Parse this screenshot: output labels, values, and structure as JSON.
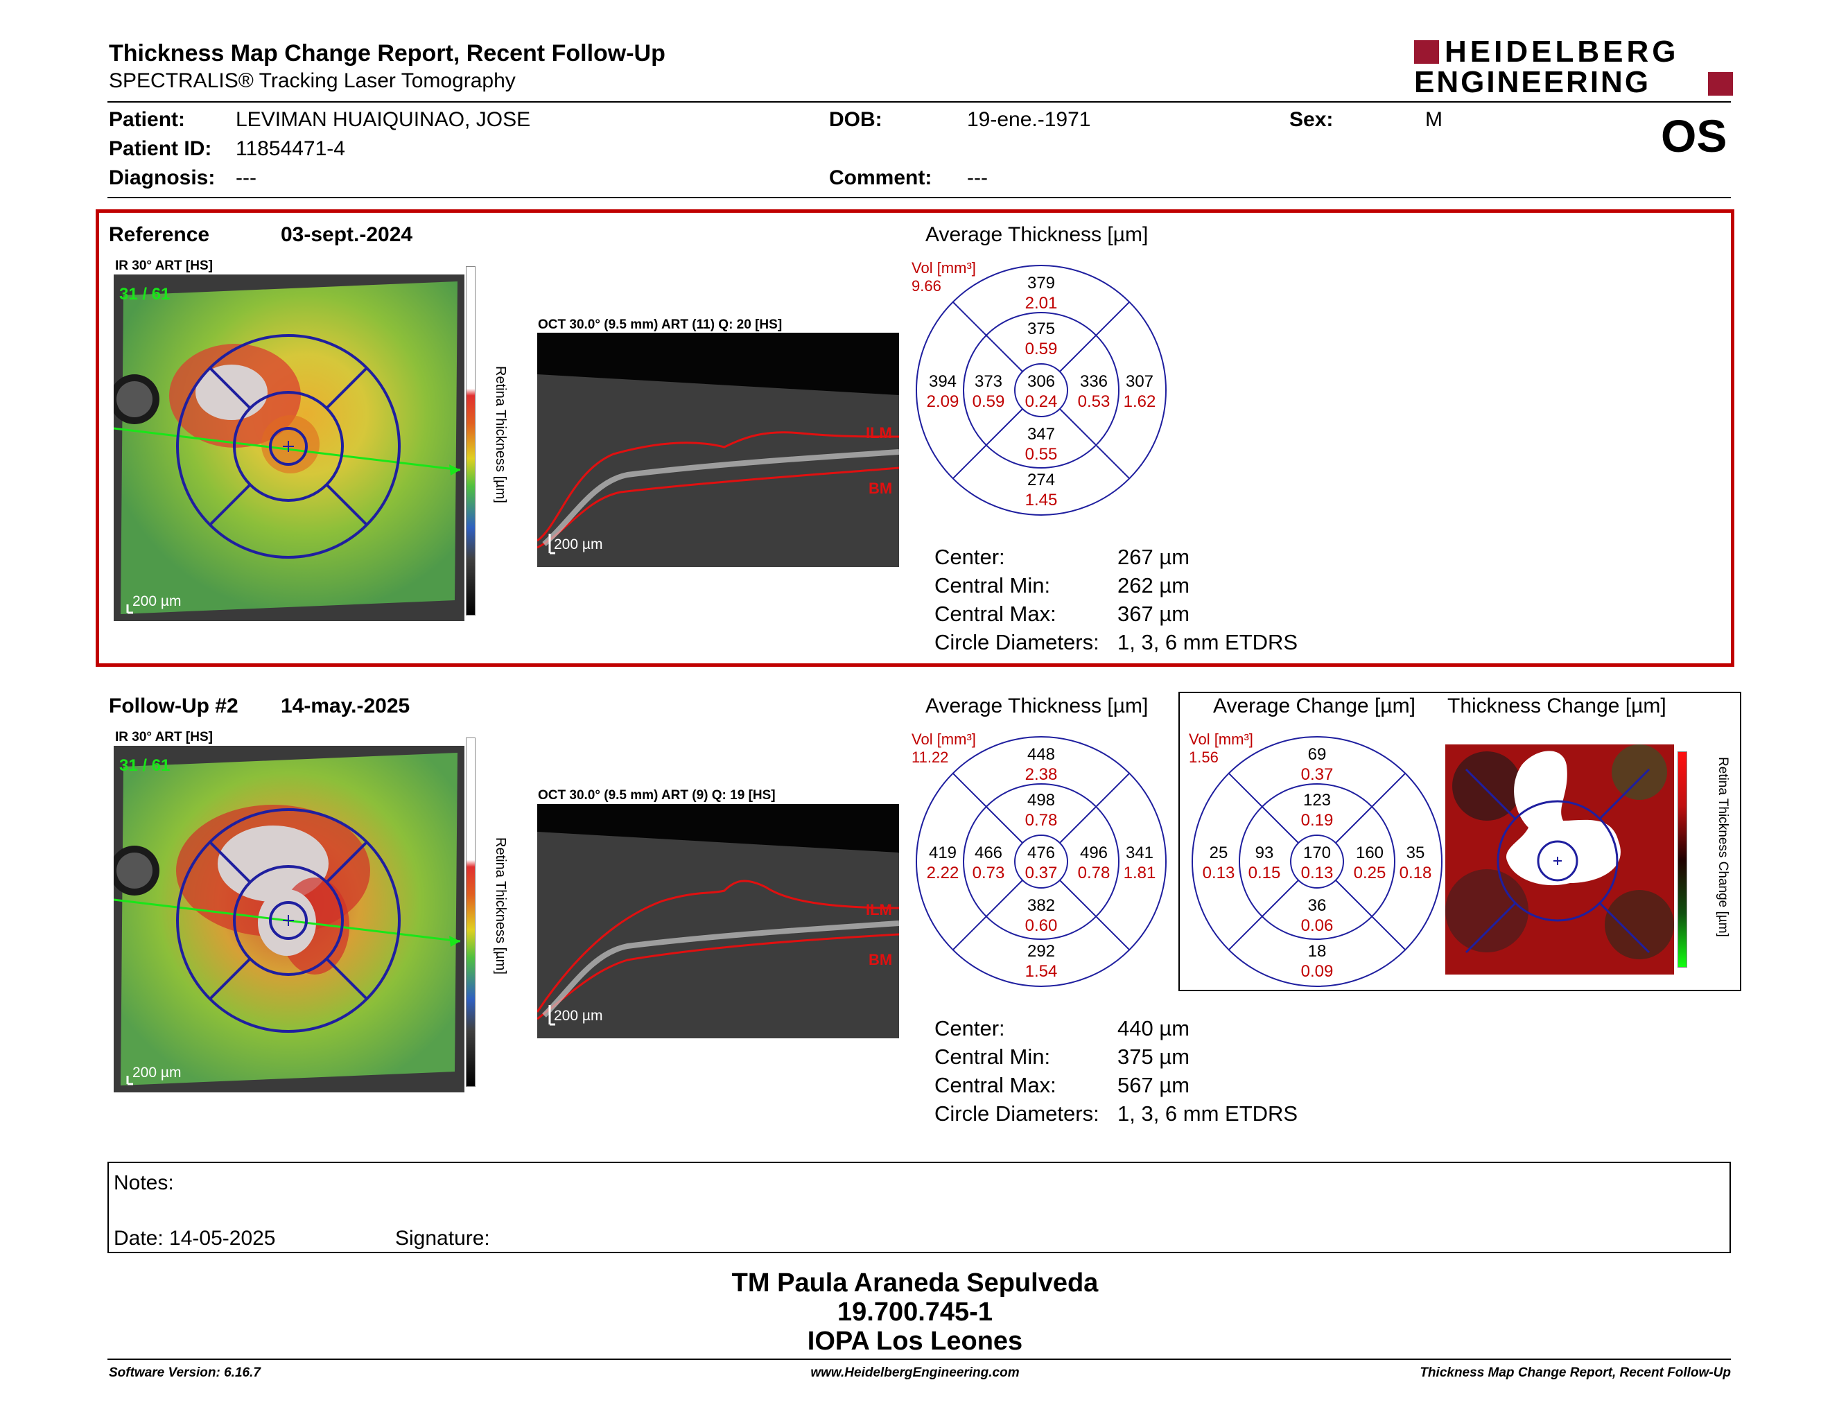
{
  "header": {
    "title": "Thickness Map Change Report, Recent Follow-Up",
    "subtitle": "SPECTRALIS® Tracking Laser Tomography",
    "logo_line1": "HEIDELBERG",
    "logo_line2": "ENGINEERING",
    "eye": "OS"
  },
  "patient": {
    "patient_label": "Patient:",
    "patient_value": "LEVIMAN HUAIQUINAO, JOSE",
    "id_label": "Patient ID:",
    "id_value": "11854471-4",
    "diagnosis_label": "Diagnosis:",
    "diagnosis_value": "---",
    "dob_label": "DOB:",
    "dob_value": "19-ene.-1971",
    "comment_label": "Comment:",
    "comment_value": "---",
    "sex_label": "Sex:",
    "sex_value": "M"
  },
  "colors": {
    "accent_red": "#c00000",
    "grid_blue": "#1f1f9f"
  },
  "reference": {
    "label": "Reference",
    "date": "03-sept.-2024",
    "ir_label": "IR 30° ART [HS]",
    "ir_counter": "31 / 61",
    "scale": "200 µm",
    "oct_label": "OCT 30.0° (9.5 mm) ART (11) Q: 20 [HS]",
    "oct_scale": "200 µm",
    "ilm": "ILM",
    "bm": "BM",
    "colorbar_title": "Retina Thickness [µm]",
    "colorbar_ticks": [
      "800",
      "700",
      "600",
      "500",
      "400",
      "300",
      "200",
      "100",
      "0"
    ],
    "avg_title": "Average Thickness [µm]",
    "vol_label": "Vol [mm³]",
    "vol_value": "9.66",
    "grid": {
      "center": [
        "306",
        "0.24"
      ],
      "inner_top": [
        "375",
        "0.59"
      ],
      "inner_right": [
        "336",
        "0.53"
      ],
      "inner_bottom": [
        "347",
        "0.55"
      ],
      "inner_left": [
        "373",
        "0.59"
      ],
      "outer_top": [
        "379",
        "2.01"
      ],
      "outer_right": [
        "307",
        "1.62"
      ],
      "outer_bottom": [
        "274",
        "1.45"
      ],
      "outer_left": [
        "394",
        "2.09"
      ]
    },
    "stats": {
      "center_label": "Center:",
      "center_value": "267 µm",
      "min_label": "Central Min:",
      "min_value": "262 µm",
      "max_label": "Central Max:",
      "max_value": "367 µm",
      "circle_label": "Circle Diameters:",
      "circle_value": "1, 3, 6 mm ETDRS"
    }
  },
  "followup": {
    "label": "Follow-Up #2",
    "date": "14-may.-2025",
    "ir_label": "IR 30° ART [HS]",
    "ir_counter": "31 / 61",
    "scale": "200 µm",
    "oct_label": "OCT 30.0° (9.5 mm) ART (9) Q: 19 [HS]",
    "oct_scale": "200 µm",
    "ilm": "ILM",
    "bm": "BM",
    "colorbar_title": "Retina Thickness [µm]",
    "colorbar_ticks": [
      "800",
      "700",
      "600",
      "500",
      "400",
      "300",
      "200",
      "100",
      "0"
    ],
    "avg_title": "Average Thickness [µm]",
    "vol_label": "Vol [mm³]",
    "vol_value": "11.22",
    "grid": {
      "center": [
        "476",
        "0.37"
      ],
      "inner_top": [
        "498",
        "0.78"
      ],
      "inner_right": [
        "496",
        "0.78"
      ],
      "inner_bottom": [
        "382",
        "0.60"
      ],
      "inner_left": [
        "466",
        "0.73"
      ],
      "outer_top": [
        "448",
        "2.38"
      ],
      "outer_right": [
        "341",
        "1.81"
      ],
      "outer_bottom": [
        "292",
        "1.54"
      ],
      "outer_left": [
        "419",
        "2.22"
      ]
    },
    "stats": {
      "center_label": "Center:",
      "center_value": "440 µm",
      "min_label": "Central Min:",
      "min_value": "375 µm",
      "max_label": "Central Max:",
      "max_value": "567 µm",
      "circle_label": "Circle Diameters:",
      "circle_value": "1, 3, 6 mm ETDRS"
    },
    "change_title": "Average Change [µm]",
    "change_vol_label": "Vol [mm³]",
    "change_vol_value": "1.56",
    "change_grid": {
      "center": [
        "170",
        "0.13"
      ],
      "inner_top": [
        "123",
        "0.19"
      ],
      "inner_right": [
        "160",
        "0.25"
      ],
      "inner_bottom": [
        "36",
        "0.06"
      ],
      "inner_left": [
        "93",
        "0.15"
      ],
      "outer_top": [
        "69",
        "0.37"
      ],
      "outer_right": [
        "35",
        "0.18"
      ],
      "outer_bottom": [
        "18",
        "0.09"
      ],
      "outer_left": [
        "25",
        "0.13"
      ]
    },
    "thickness_change_title": "Thickness Change [µm]",
    "change_colorbar_title": "Retina Thickness Change [µm]",
    "change_colorbar_ticks": [
      "100",
      "75",
      "50",
      "25",
      "0",
      "-25",
      "-50",
      "-75",
      "-100"
    ]
  },
  "notes": {
    "notes_label": "Notes:",
    "date_label": "Date: 14-05-2025",
    "signature_label": "Signature:"
  },
  "signer": {
    "name": "TM Paula Araneda Sepulveda",
    "id": "19.700.745-1",
    "org": "IOPA Los Leones"
  },
  "footer": {
    "version": "Software Version: 6.16.7",
    "website": "www.HeidelbergEngineering.com",
    "report": "Thickness Map Change Report, Recent Follow-Up"
  }
}
